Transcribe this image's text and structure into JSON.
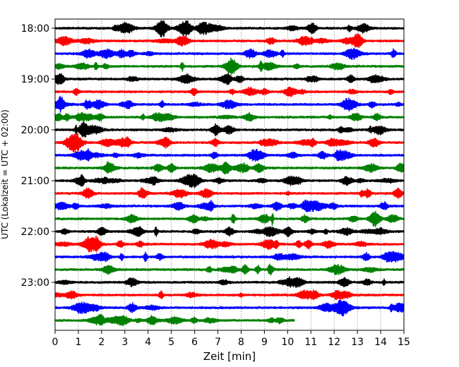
{
  "chart_data": {
    "type": "line",
    "title": "",
    "xlabel": "Zeit  [min]",
    "ylabel": "UTC (Lokalzeit = UTC + 02:00)",
    "xlim": [
      0,
      15
    ],
    "x_ticks": [
      "0",
      "1",
      "2",
      "3",
      "4",
      "5",
      "6",
      "7",
      "8",
      "9",
      "10",
      "11",
      "12",
      "13",
      "14",
      "15"
    ],
    "y_ticks": [
      "18:00",
      "19:00",
      "20:00",
      "21:00",
      "22:00",
      "23:00"
    ],
    "grid": "vertical dotted",
    "trace_interval_minutes": 15,
    "trace_colors": [
      "#000000",
      "#ff0000",
      "#0000ff",
      "#008000"
    ],
    "traces": [
      {
        "start": "18:00",
        "color": "#000000",
        "end_min": 15
      },
      {
        "start": "18:15",
        "color": "#ff0000",
        "end_min": 15
      },
      {
        "start": "18:30",
        "color": "#0000ff",
        "end_min": 15
      },
      {
        "start": "18:45",
        "color": "#008000",
        "end_min": 15
      },
      {
        "start": "19:00",
        "color": "#000000",
        "end_min": 15
      },
      {
        "start": "19:15",
        "color": "#ff0000",
        "end_min": 15
      },
      {
        "start": "19:30",
        "color": "#0000ff",
        "end_min": 15
      },
      {
        "start": "19:45",
        "color": "#008000",
        "end_min": 15
      },
      {
        "start": "20:00",
        "color": "#000000",
        "end_min": 15
      },
      {
        "start": "20:15",
        "color": "#ff0000",
        "end_min": 15
      },
      {
        "start": "20:30",
        "color": "#0000ff",
        "end_min": 15
      },
      {
        "start": "20:45",
        "color": "#008000",
        "end_min": 15
      },
      {
        "start": "21:00",
        "color": "#000000",
        "end_min": 15
      },
      {
        "start": "21:15",
        "color": "#ff0000",
        "end_min": 15
      },
      {
        "start": "21:30",
        "color": "#0000ff",
        "end_min": 15
      },
      {
        "start": "21:45",
        "color": "#008000",
        "end_min": 15
      },
      {
        "start": "22:00",
        "color": "#000000",
        "end_min": 15
      },
      {
        "start": "22:15",
        "color": "#ff0000",
        "end_min": 15
      },
      {
        "start": "22:30",
        "color": "#0000ff",
        "end_min": 15
      },
      {
        "start": "22:45",
        "color": "#008000",
        "end_min": 15
      },
      {
        "start": "23:00",
        "color": "#000000",
        "end_min": 15
      },
      {
        "start": "23:15",
        "color": "#ff0000",
        "end_min": 15
      },
      {
        "start": "23:30",
        "color": "#0000ff",
        "end_min": 15
      },
      {
        "start": "23:45",
        "color": "#008000",
        "end_min": 10.3
      }
    ]
  }
}
